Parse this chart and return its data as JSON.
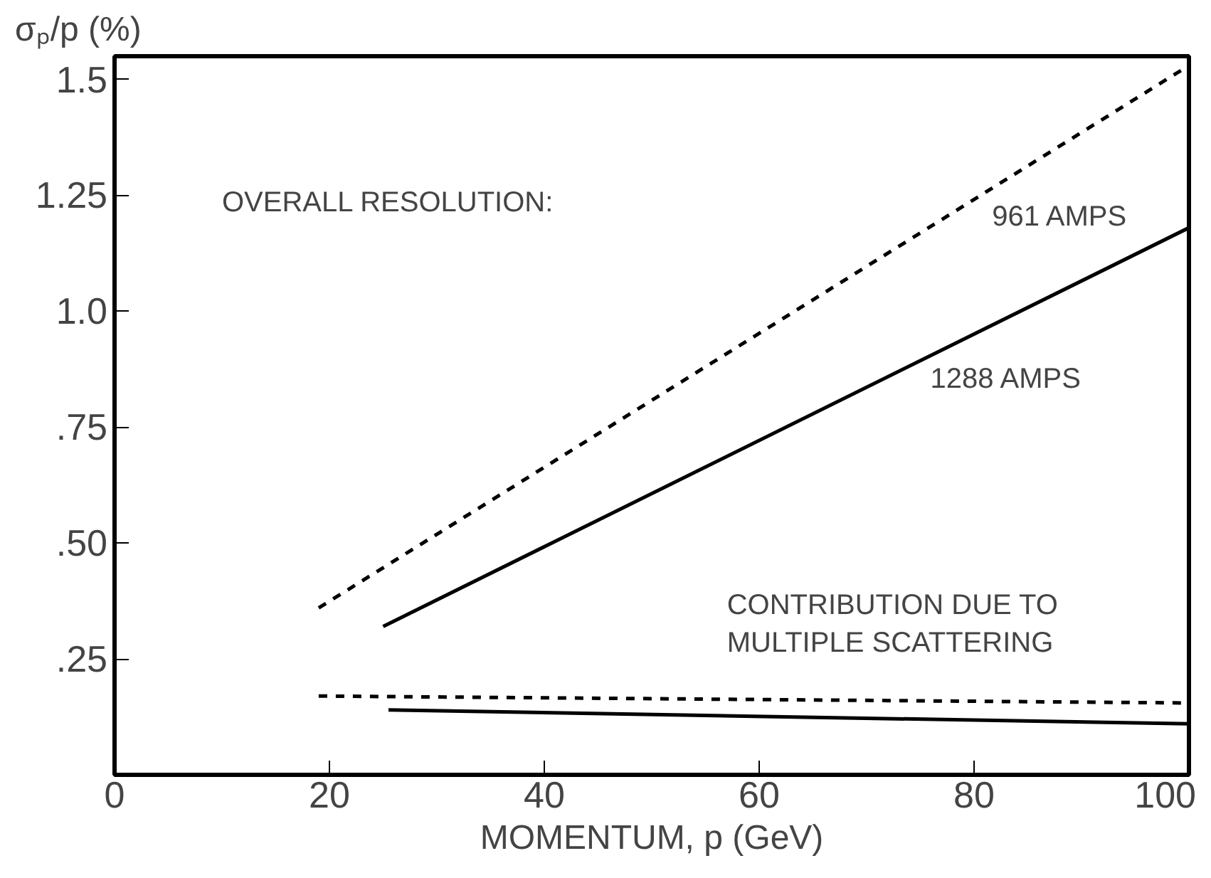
{
  "chart_data": {
    "type": "line",
    "ylabel": "σₚ/p (%)",
    "xlabel": "MOMENTUM, p (GeV)",
    "xlim": [
      0,
      100
    ],
    "xticks": [
      0,
      20,
      40,
      60,
      80,
      100
    ],
    "ylim": [
      0,
      1.55
    ],
    "yticks": [
      {
        "value": 1.5,
        "label": "1.5"
      },
      {
        "value": 1.25,
        "label": "1.25"
      },
      {
        "value": 1.0,
        "label": "1.0"
      },
      {
        "value": 0.75,
        "label": ".75"
      },
      {
        "value": 0.5,
        "label": ".50"
      },
      {
        "value": 0.25,
        "label": ".25"
      }
    ],
    "grid": false,
    "series": [
      {
        "name": "961 AMPS",
        "color": "#000000",
        "line_style": "dashed",
        "x": [
          19,
          100
        ],
        "values": [
          0.36,
          1.53
        ]
      },
      {
        "name": "1288 AMPS",
        "color": "#000000",
        "line_style": "solid",
        "x": [
          25,
          100
        ],
        "values": [
          0.32,
          1.18
        ]
      },
      {
        "color": "#000000",
        "line_style": "dashed",
        "x": [
          19,
          100
        ],
        "values": [
          0.17,
          0.155
        ]
      },
      {
        "color": "#000000",
        "line_style": "solid",
        "x": [
          25.5,
          100
        ],
        "values": [
          0.14,
          0.11
        ]
      }
    ],
    "annotations": [
      "OVERALL RESOLUTION:",
      "CONTRIBUTION DUE TO MULTIPLE SCATTERING"
    ]
  }
}
